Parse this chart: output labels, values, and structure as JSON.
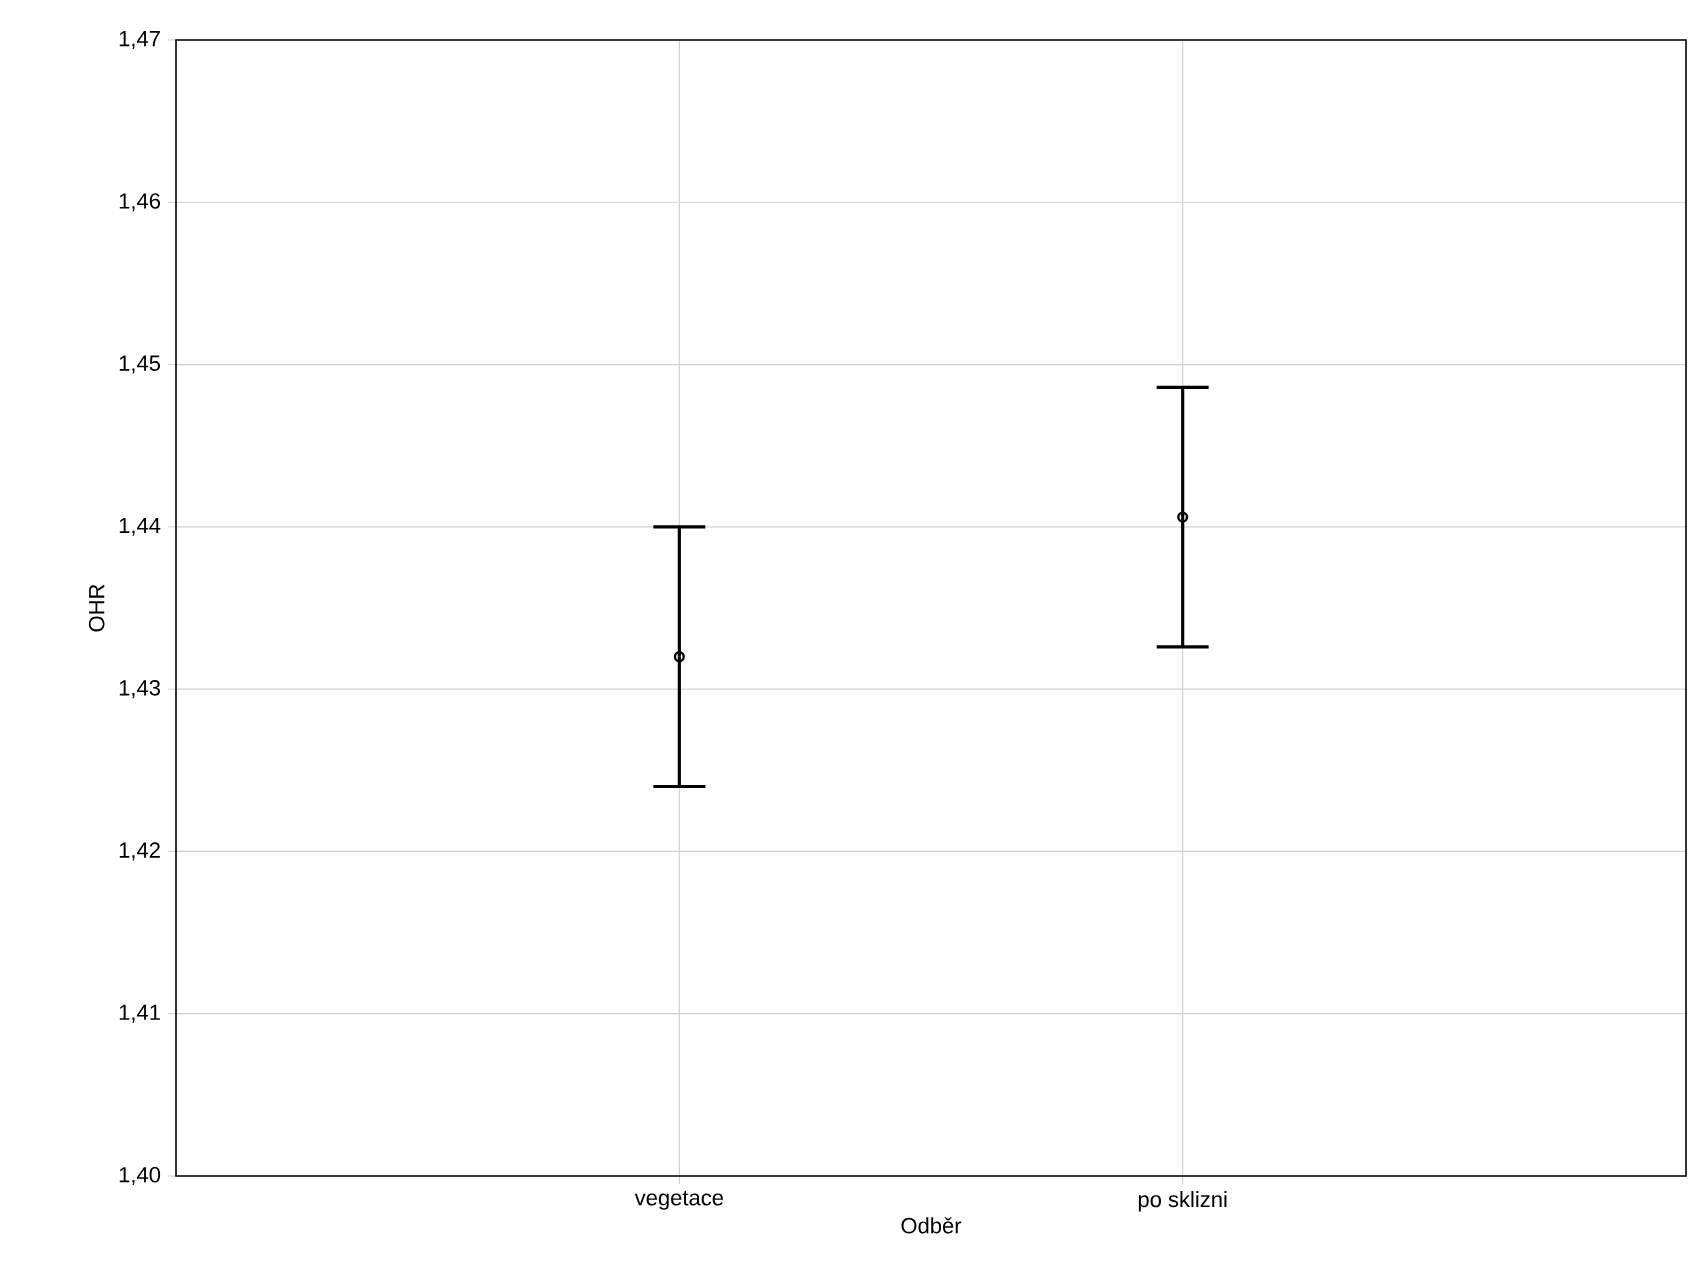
{
  "chart_data": {
    "type": "scatter",
    "xlabel": "Odběr",
    "ylabel": "OHR",
    "categories": [
      "vegetace",
      "po sklizni"
    ],
    "values": [
      1.432,
      1.4406
    ],
    "errors": [
      0.008,
      0.008
    ],
    "color": "#000000",
    "marker": "circle",
    "grid": true,
    "ylim": [
      1.4,
      1.47
    ],
    "yticks": [
      {
        "value": 1.4,
        "label": "1,40"
      },
      {
        "value": 1.41,
        "label": "1,41"
      },
      {
        "value": 1.42,
        "label": "1,42"
      },
      {
        "value": 1.43,
        "label": "1,43"
      },
      {
        "value": 1.44,
        "label": "1,44"
      },
      {
        "value": 1.45,
        "label": "1,45"
      },
      {
        "value": 1.46,
        "label": "1,46"
      },
      {
        "value": 1.47,
        "label": "1,47"
      }
    ]
  }
}
